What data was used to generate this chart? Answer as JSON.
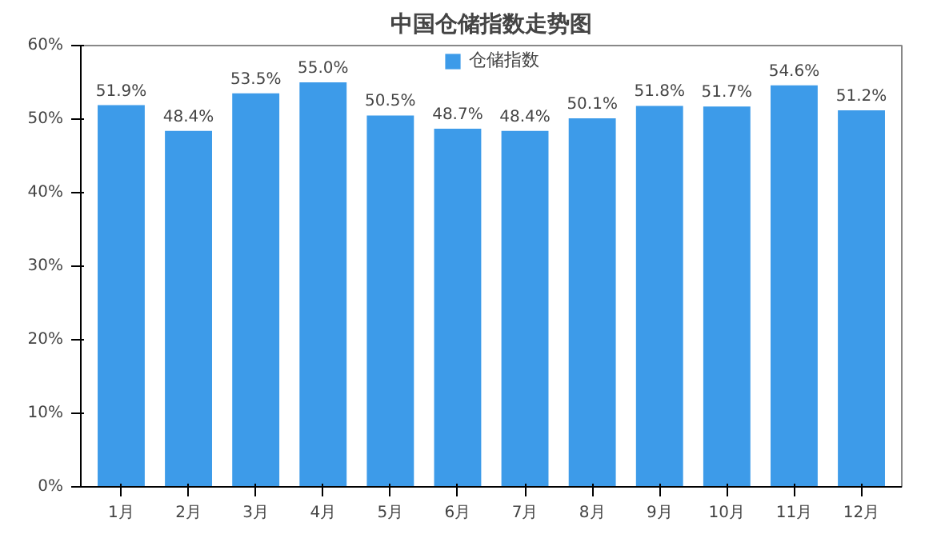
{
  "chart_data": {
    "type": "bar",
    "title": "中国仓储指数走势图",
    "categories": [
      "1月",
      "2月",
      "3月",
      "4月",
      "5月",
      "6月",
      "7月",
      "8月",
      "9月",
      "10月",
      "11月",
      "12月"
    ],
    "series": [
      {
        "name": "仓储指数",
        "color": "#3d9be9",
        "values": [
          51.9,
          48.4,
          53.5,
          55.0,
          50.5,
          48.7,
          48.4,
          50.1,
          51.8,
          51.7,
          54.6,
          51.2
        ],
        "value_labels": [
          "51.9%",
          "48.4%",
          "53.5%",
          "55.0%",
          "50.5%",
          "48.7%",
          "48.4%",
          "50.1%",
          "51.8%",
          "51.7%",
          "54.6%",
          "51.2%"
        ]
      }
    ],
    "ylim": [
      0,
      60
    ],
    "yticks": [
      {
        "value": 0,
        "label": "0%"
      },
      {
        "value": 10,
        "label": "10%"
      },
      {
        "value": 20,
        "label": "20%"
      },
      {
        "value": 30,
        "label": "30%"
      },
      {
        "value": 40,
        "label": "40%"
      },
      {
        "value": 50,
        "label": "50%"
      },
      {
        "value": 60,
        "label": "60%"
      }
    ],
    "legend": "top",
    "grid": false
  }
}
